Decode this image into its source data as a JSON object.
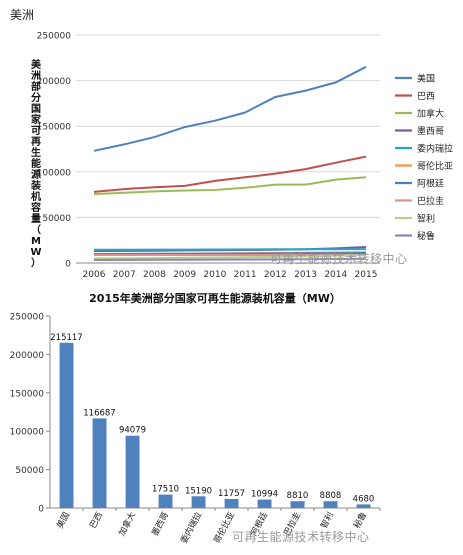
{
  "region_title": "美洲",
  "watermark_text": "可再生能源技术转移中心",
  "chart_data": [
    {
      "type": "line",
      "title": "",
      "ylabel": "美洲部分国家可再生能源装机容量（MW）",
      "xlabel": "",
      "x": [
        "2006",
        "2007",
        "2008",
        "2009",
        "2010",
        "2011",
        "2012",
        "2013",
        "2014",
        "2015"
      ],
      "ylim": [
        0,
        250000
      ],
      "yticks": [
        0,
        50000,
        100000,
        150000,
        200000,
        250000
      ],
      "grid": true,
      "legend": "right",
      "series": [
        {
          "name": "美国",
          "color": "#4f81bd",
          "values": [
            123000,
            130000,
            138000,
            149000,
            156000,
            165000,
            182000,
            189000,
            198000,
            215117
          ]
        },
        {
          "name": "巴西",
          "color": "#c0504d",
          "values": [
            78000,
            81000,
            83000,
            84500,
            90000,
            94000,
            98000,
            103000,
            110000,
            116687
          ]
        },
        {
          "name": "加拿大",
          "color": "#9bbb59",
          "values": [
            75500,
            77000,
            78500,
            79500,
            80000,
            82500,
            86000,
            86000,
            91500,
            94079
          ]
        },
        {
          "name": "墨西哥",
          "color": "#7b5b9c",
          "values": [
            13000,
            13300,
            13500,
            13800,
            14000,
            14200,
            14500,
            15000,
            16000,
            17510
          ]
        },
        {
          "name": "委内瑞拉",
          "color": "#2aa6c2",
          "values": [
            14500,
            14600,
            14700,
            14700,
            14800,
            14900,
            15000,
            15000,
            15100,
            15190
          ]
        },
        {
          "name": "哥伦比亚",
          "color": "#f79646",
          "values": [
            9500,
            9700,
            9900,
            10100,
            10400,
            10700,
            11000,
            11200,
            11500,
            11757
          ]
        },
        {
          "name": "阿根廷",
          "color": "#4a7fc1",
          "values": [
            9800,
            10000,
            10100,
            10200,
            10300,
            10400,
            10500,
            10600,
            10800,
            10994
          ]
        },
        {
          "name": "巴拉圭",
          "color": "#e0908f",
          "values": [
            8810,
            8810,
            8810,
            8810,
            8810,
            8810,
            8810,
            8810,
            8810,
            8810
          ]
        },
        {
          "name": "智利",
          "color": "#b7d27f",
          "values": [
            5000,
            5200,
            5400,
            5700,
            6000,
            6300,
            6700,
            7200,
            7900,
            8808
          ]
        },
        {
          "name": "秘鲁",
          "color": "#8f84c3",
          "values": [
            3300,
            3400,
            3500,
            3600,
            3700,
            3800,
            4000,
            4200,
            4400,
            4680
          ]
        }
      ]
    },
    {
      "type": "bar",
      "title": "2015年美洲部分国家可再生能源装机容量（MW）",
      "xlabel": "",
      "ylabel": "",
      "categories": [
        "美国",
        "巴西",
        "加拿大",
        "墨西哥",
        "委内瑞拉",
        "哥伦比亚",
        "阿根廷",
        "巴拉圭",
        "智利",
        "秘鲁"
      ],
      "values": [
        215117,
        116687,
        94079,
        17510,
        15190,
        11757,
        10994,
        8810,
        8808,
        4680
      ],
      "ylim": [
        0,
        250000
      ],
      "yticks": [
        0,
        50000,
        100000,
        150000,
        200000,
        250000
      ],
      "color": "#4f81bd",
      "grid": false
    }
  ]
}
